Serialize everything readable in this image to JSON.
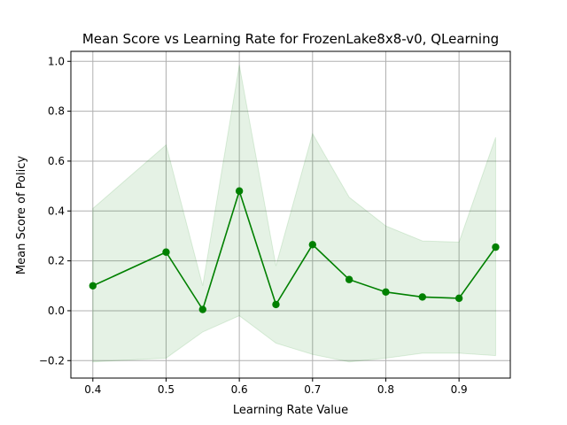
{
  "chart_data": {
    "type": "line",
    "title": "Mean Score vs Learning Rate for FrozenLake8x8-v0, QLearning",
    "xlabel": "Learning Rate Value",
    "ylabel": "Mean Score of Policy",
    "xlim": [
      0.37,
      0.97
    ],
    "ylim": [
      -0.27,
      1.04
    ],
    "grid": true,
    "colors": {
      "line": "#008000",
      "band": "#008000",
      "grid": "#b0b0b0",
      "axis": "#000000"
    },
    "x_ticks": [
      0.4,
      0.5,
      0.6,
      0.7,
      0.8,
      0.9
    ],
    "x_tick_labels": [
      "0.4",
      "0.5",
      "0.6",
      "0.7",
      "0.8",
      "0.9"
    ],
    "y_ticks": [
      -0.2,
      0.0,
      0.2,
      0.4,
      0.6,
      0.8,
      1.0
    ],
    "y_tick_labels": [
      "−0.2",
      "0.0",
      "0.2",
      "0.4",
      "0.6",
      "0.8",
      "1.0"
    ],
    "series": [
      {
        "x": [
          0.4,
          0.5,
          0.55,
          0.6,
          0.65,
          0.7,
          0.75,
          0.8,
          0.85,
          0.9,
          0.95
        ],
        "values": [
          0.1,
          0.235,
          0.005,
          0.48,
          0.025,
          0.265,
          0.125,
          0.075,
          0.055,
          0.05,
          0.255
        ],
        "upper": [
          0.41,
          0.665,
          0.1,
          0.985,
          0.18,
          0.71,
          0.455,
          0.34,
          0.28,
          0.275,
          0.695
        ],
        "lower": [
          -0.205,
          -0.19,
          -0.085,
          -0.02,
          -0.13,
          -0.175,
          -0.205,
          -0.19,
          -0.17,
          -0.17,
          -0.18
        ]
      }
    ]
  }
}
